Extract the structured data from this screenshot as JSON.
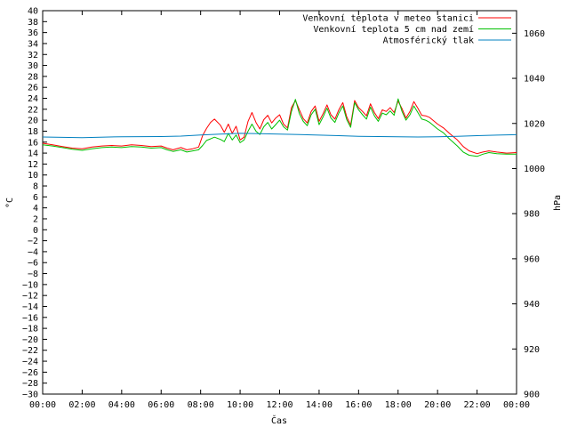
{
  "chart_data": {
    "type": "line",
    "xlabel": "Čas",
    "ylabel_left": "°C",
    "ylabel_right": "hPa",
    "x_ticks": [
      "00:00",
      "02:00",
      "04:00",
      "06:00",
      "08:00",
      "10:00",
      "12:00",
      "14:00",
      "16:00",
      "18:00",
      "20:00",
      "22:00",
      "00:00"
    ],
    "x_range_hours": [
      0,
      24
    ],
    "ylim_left": [
      -30,
      40
    ],
    "ylim_right": [
      900,
      1070
    ],
    "yticks_left_step": 2,
    "yticks_right": [
      900,
      920,
      940,
      960,
      980,
      1000,
      1020,
      1040,
      1060
    ],
    "grid": false,
    "legend_position": "top-right",
    "series": [
      {
        "name": "Venkovní teplota v meteo stanici",
        "axis": "left",
        "color": "#ff0000",
        "x": [
          0,
          0.5,
          1,
          1.5,
          2,
          2.5,
          3,
          3.5,
          4,
          4.5,
          5,
          5.5,
          6,
          6.3,
          6.6,
          7,
          7.3,
          7.6,
          7.9,
          8.1,
          8.3,
          8.5,
          8.7,
          9,
          9.2,
          9.4,
          9.6,
          9.8,
          10,
          10.2,
          10.4,
          10.6,
          10.8,
          11,
          11.2,
          11.4,
          11.6,
          11.8,
          12,
          12.2,
          12.4,
          12.6,
          12.8,
          13,
          13.2,
          13.4,
          13.6,
          13.8,
          14,
          14.2,
          14.4,
          14.6,
          14.8,
          15,
          15.2,
          15.4,
          15.6,
          15.8,
          16,
          16.2,
          16.4,
          16.6,
          16.8,
          17,
          17.2,
          17.4,
          17.6,
          17.8,
          18,
          18.2,
          18.4,
          18.6,
          18.8,
          19,
          19.2,
          19.4,
          19.6,
          19.8,
          20,
          20.3,
          20.6,
          21,
          21.3,
          21.6,
          22,
          22.3,
          22.6,
          23,
          23.5,
          24
        ],
        "values": [
          15.8,
          15.5,
          15.2,
          14.9,
          14.8,
          15.1,
          15.3,
          15.4,
          15.3,
          15.5,
          15.4,
          15.2,
          15.3,
          14.9,
          14.6,
          15.0,
          14.6,
          14.8,
          15.1,
          17.2,
          18.5,
          19.6,
          20.2,
          19.1,
          17.8,
          19.3,
          17.6,
          18.9,
          16.4,
          16.9,
          19.8,
          21.4,
          19.6,
          18.4,
          20.1,
          20.9,
          19.5,
          20.4,
          21.0,
          19.3,
          18.6,
          22.3,
          23.6,
          21.9,
          20.3,
          19.5,
          21.6,
          22.6,
          19.8,
          21.2,
          22.8,
          21.0,
          20.2,
          21.9,
          23.2,
          20.6,
          19.1,
          23.6,
          22.3,
          21.6,
          20.8,
          23.0,
          21.4,
          20.3,
          21.9,
          21.6,
          22.3,
          21.4,
          23.5,
          22.1,
          20.4,
          21.6,
          23.4,
          22.2,
          20.9,
          20.8,
          20.5,
          19.9,
          19.3,
          18.6,
          17.6,
          16.4,
          15.2,
          14.4,
          13.9,
          14.2,
          14.4,
          14.2,
          14.0,
          14.1
        ]
      },
      {
        "name": "Venkovní teplota 5 cm nad zemí",
        "axis": "left",
        "color": "#00c000",
        "x": [
          0,
          0.5,
          1,
          1.5,
          2,
          2.5,
          3,
          3.5,
          4,
          4.5,
          5,
          5.5,
          6,
          6.3,
          6.6,
          7,
          7.3,
          7.6,
          7.9,
          8.1,
          8.3,
          8.5,
          8.7,
          9,
          9.2,
          9.4,
          9.6,
          9.8,
          10,
          10.2,
          10.4,
          10.6,
          10.8,
          11,
          11.2,
          11.4,
          11.6,
          11.8,
          12,
          12.2,
          12.4,
          12.6,
          12.8,
          13,
          13.2,
          13.4,
          13.6,
          13.8,
          14,
          14.2,
          14.4,
          14.6,
          14.8,
          15,
          15.2,
          15.4,
          15.6,
          15.8,
          16,
          16.2,
          16.4,
          16.6,
          16.8,
          17,
          17.2,
          17.4,
          17.6,
          17.8,
          18,
          18.2,
          18.4,
          18.6,
          18.8,
          19,
          19.2,
          19.4,
          19.6,
          19.8,
          20,
          20.3,
          20.6,
          21,
          21.3,
          21.6,
          22,
          22.3,
          22.6,
          23,
          23.5,
          24
        ],
        "values": [
          15.5,
          15.3,
          15.0,
          14.7,
          14.5,
          14.8,
          15.0,
          15.1,
          15.0,
          15.2,
          15.1,
          14.9,
          15.0,
          14.6,
          14.3,
          14.6,
          14.2,
          14.4,
          14.6,
          15.4,
          16.3,
          16.6,
          16.9,
          16.5,
          16.1,
          17.6,
          16.4,
          17.3,
          15.9,
          16.4,
          18.0,
          19.3,
          18.0,
          17.4,
          18.8,
          19.6,
          18.4,
          19.2,
          20.0,
          18.8,
          18.2,
          21.6,
          23.8,
          21.2,
          19.8,
          19.0,
          21.0,
          22.0,
          19.2,
          20.6,
          22.2,
          20.4,
          19.6,
          21.3,
          22.6,
          20.1,
          18.7,
          23.2,
          21.9,
          21.0,
          20.2,
          22.4,
          20.8,
          19.8,
          21.3,
          21.0,
          21.7,
          20.9,
          23.9,
          21.6,
          20.0,
          21.0,
          22.6,
          21.4,
          20.2,
          20.0,
          19.6,
          19.0,
          18.4,
          17.7,
          16.6,
          15.3,
          14.2,
          13.6,
          13.4,
          13.8,
          14.1,
          13.9,
          13.8,
          13.8
        ]
      },
      {
        "name": "Atmosférický tlak",
        "axis": "right",
        "color": "#0080c0",
        "x": [
          0,
          2,
          4,
          6,
          7,
          8,
          9,
          10,
          11,
          12,
          13,
          14,
          15,
          16,
          17,
          18,
          19,
          20,
          21,
          22,
          23,
          24
        ],
        "values": [
          1014.0,
          1013.7,
          1014.1,
          1014.2,
          1014.4,
          1014.9,
          1015.3,
          1015.6,
          1015.5,
          1015.3,
          1015.1,
          1014.8,
          1014.6,
          1014.3,
          1014.2,
          1014.1,
          1014.0,
          1014.1,
          1014.3,
          1014.6,
          1014.8,
          1015.0
        ]
      }
    ]
  }
}
